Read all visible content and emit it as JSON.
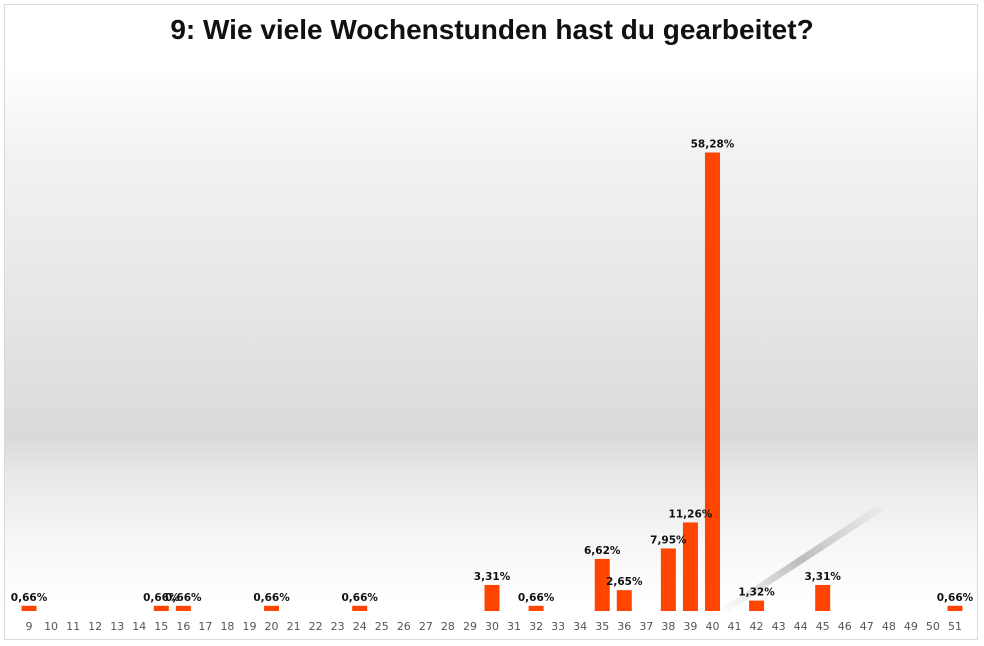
{
  "chart_data": {
    "type": "bar",
    "title": "9: Wie viele Wochenstunden hast du gearbeitet?",
    "xlabel": "",
    "ylabel": "",
    "categories": [
      "9",
      "10",
      "11",
      "12",
      "13",
      "14",
      "15",
      "16",
      "17",
      "18",
      "19",
      "20",
      "21",
      "22",
      "23",
      "24",
      "25",
      "26",
      "27",
      "28",
      "29",
      "30",
      "31",
      "32",
      "33",
      "34",
      "35",
      "36",
      "37",
      "38",
      "39",
      "40",
      "41",
      "42",
      "43",
      "44",
      "45",
      "46",
      "47",
      "48",
      "49",
      "50",
      "51"
    ],
    "values": [
      0.66,
      0,
      0,
      0,
      0,
      0,
      0.66,
      0.66,
      0,
      0,
      0,
      0.66,
      0,
      0,
      0,
      0.66,
      0,
      0,
      0,
      0,
      0,
      3.31,
      0,
      0.66,
      0,
      0,
      6.62,
      2.65,
      0,
      7.95,
      11.26,
      58.28,
      0,
      1.32,
      0,
      0,
      3.31,
      0,
      0,
      0,
      0,
      0,
      0.66
    ],
    "data_labels": [
      "0,66%",
      "",
      "",
      "",
      "",
      "",
      "0,66%",
      "0,66%",
      "",
      "",
      "",
      "0,66%",
      "",
      "",
      "",
      "0,66%",
      "",
      "",
      "",
      "",
      "",
      "3,31%",
      "",
      "0,66%",
      "",
      "",
      "6,62%",
      "2,65%",
      "",
      "7,95%",
      "11,26%",
      "58,28%",
      "",
      "1,32%",
      "",
      "",
      "3,31%",
      "",
      "",
      "",
      "",
      "",
      "0,66%"
    ],
    "ylim": [
      0,
      60
    ],
    "grid": false,
    "legend": "none",
    "bar_color": "#ff4500"
  }
}
